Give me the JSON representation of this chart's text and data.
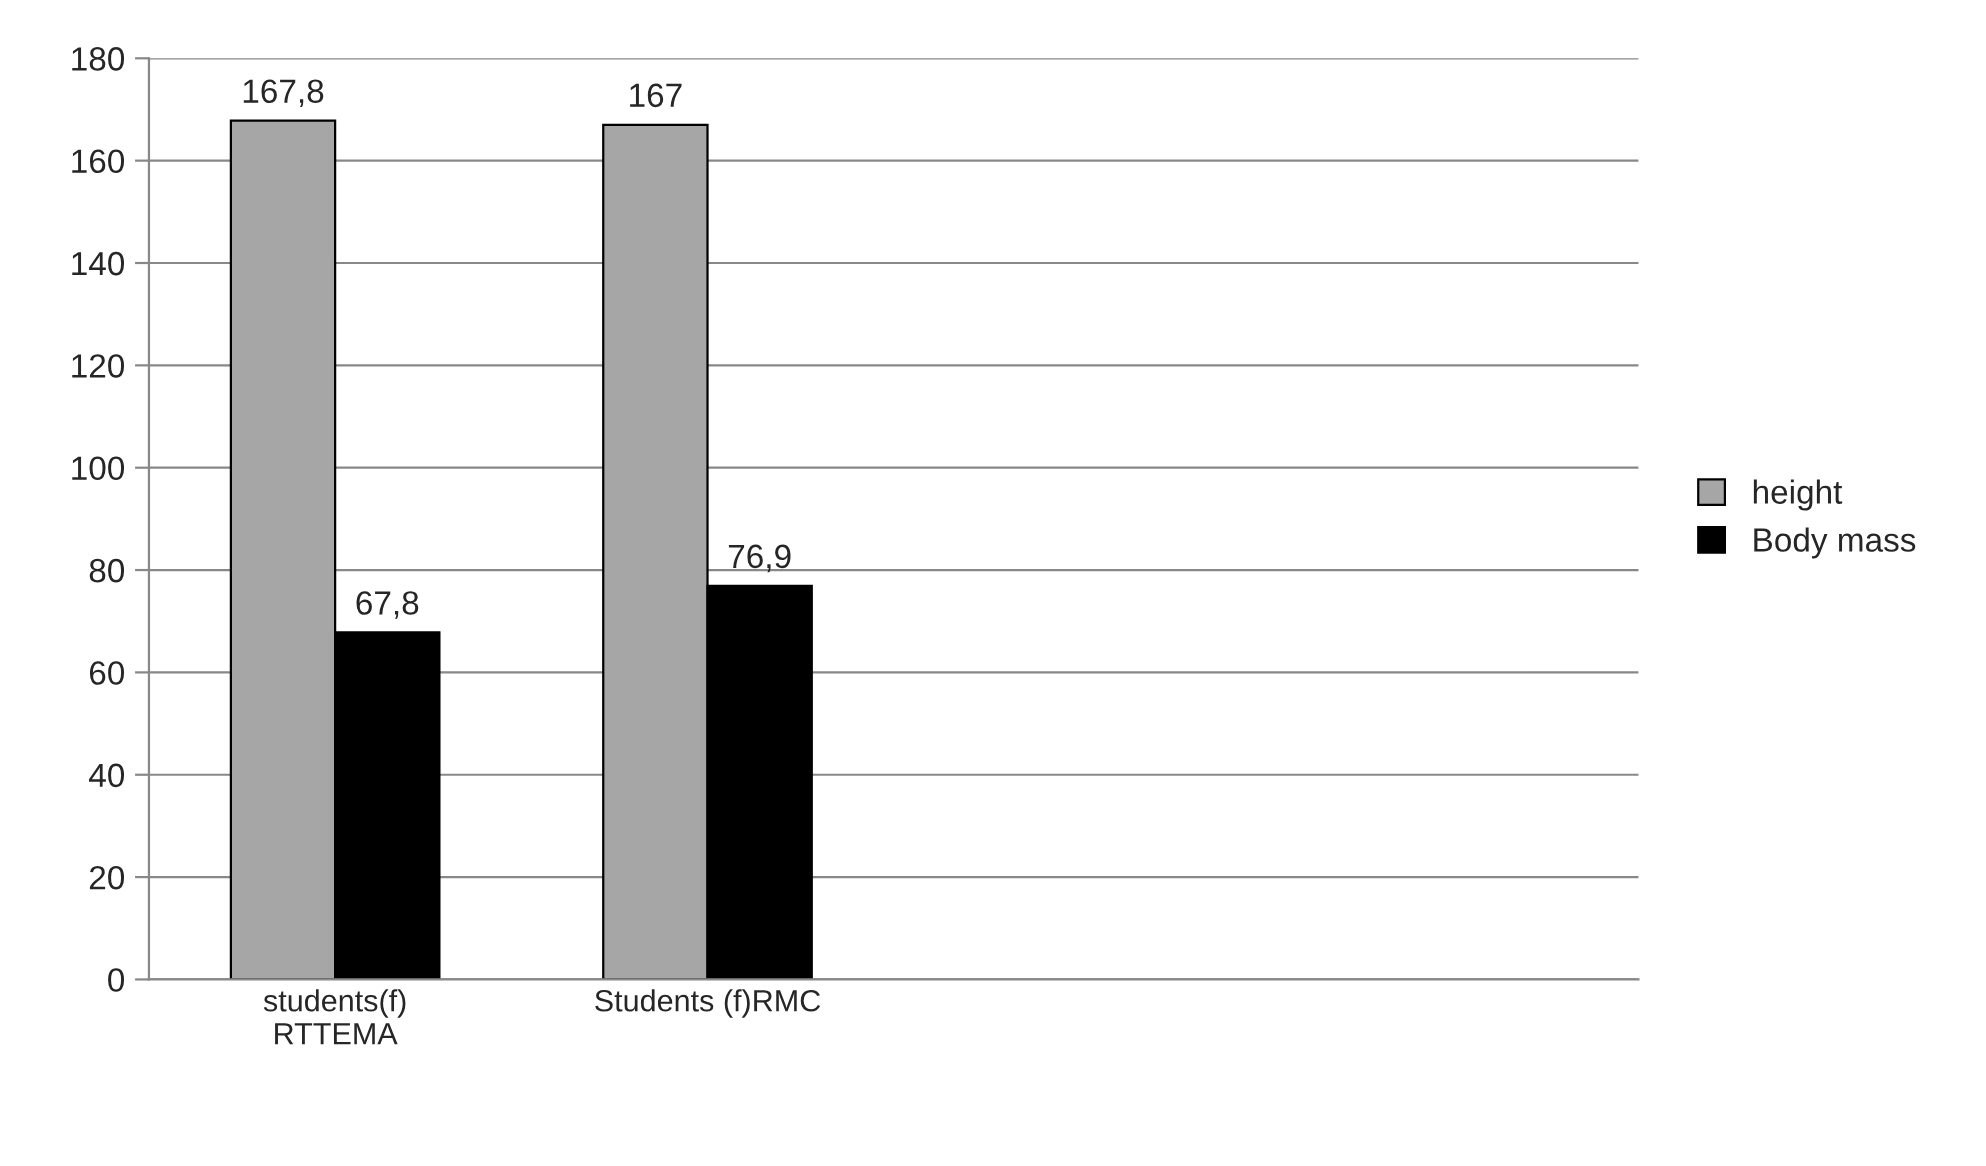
{
  "chart_data": {
    "type": "bar",
    "categories": [
      "students(f)\nRTTEMA",
      "Students (f)RMC",
      null,
      null
    ],
    "series": [
      {
        "name": "height",
        "color": "#a6a6a6",
        "values": [
          167.8,
          167,
          null,
          null
        ],
        "value_labels": [
          "167,8",
          "167",
          null,
          null
        ]
      },
      {
        "name": "Body mass",
        "color": "#000000",
        "values": [
          67.8,
          76.9,
          null,
          null
        ],
        "value_labels": [
          "67,8",
          "76,9",
          null,
          null
        ]
      }
    ],
    "ylim": [
      0,
      180
    ],
    "yticks": [
      0,
      20,
      40,
      60,
      80,
      100,
      120,
      140,
      160,
      180
    ],
    "grid": "y",
    "legend": "right"
  }
}
